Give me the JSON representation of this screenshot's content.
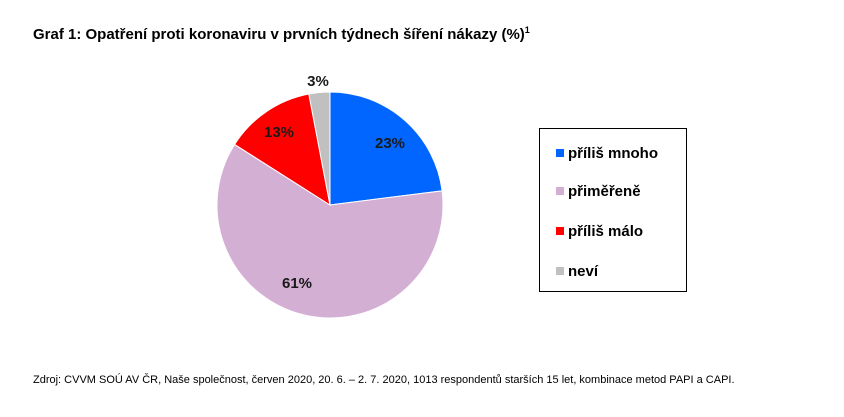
{
  "title": {
    "text": "Graf 1: Opatření proti koronaviru v prvních týdnech šíření nákazy (%)",
    "footnote_mark": "1"
  },
  "source": "Zdroj: CVVM SOÚ AV ČR, Naše společnost, červen 2020, 20. 6. – 2. 7. 2020, 1013 respondentů starších 15 let, kombinace metod PAPI a CAPI.",
  "chart_data": {
    "type": "pie",
    "title": "Graf 1: Opatření proti koronaviru v prvních týdnech šíření nákazy (%)",
    "unit": "%",
    "legend_position": "right",
    "categories": [
      "příliš mnoho",
      "přiměřeně",
      "příliš málo",
      "neví"
    ],
    "values": [
      23,
      61,
      13,
      3
    ],
    "data_labels": [
      "23%",
      "61%",
      "13%",
      "3%"
    ],
    "colors": [
      "#0066ff",
      "#d4afd4",
      "#ff0000",
      "#c0c0c0"
    ]
  }
}
